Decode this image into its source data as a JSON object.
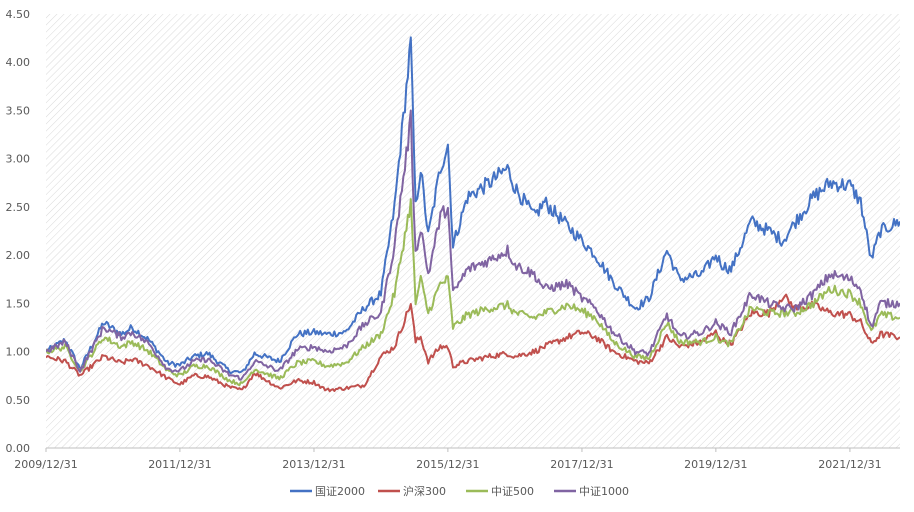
{
  "chart_data": {
    "type": "line",
    "title": "",
    "xlabel": "",
    "ylabel": "",
    "xlim": [
      "2009-12-31",
      "2022-09-30"
    ],
    "ylim": [
      0,
      4.5
    ],
    "y_ticks": [
      "0.00",
      "0.50",
      "1.00",
      "1.50",
      "2.00",
      "2.50",
      "3.00",
      "3.50",
      "4.00",
      "4.50"
    ],
    "x_ticks": [
      "2009/12/31",
      "2011/12/31",
      "2013/12/31",
      "2015/12/31",
      "2017/12/31",
      "2019/12/31",
      "2021/12/31"
    ],
    "grid": "hatched plot area, no gridlines",
    "legend_position": "bottom",
    "series": [
      {
        "name": "国证2000",
        "color": "#4472c4",
        "points": [
          [
            "2009-12-31",
            1.0
          ],
          [
            "2010-04-15",
            1.12
          ],
          [
            "2010-07-05",
            0.82
          ],
          [
            "2010-11-10",
            1.3
          ],
          [
            "2011-02-15",
            1.18
          ],
          [
            "2011-04-15",
            1.25
          ],
          [
            "2011-07-15",
            1.12
          ],
          [
            "2011-10-25",
            0.88
          ],
          [
            "2011-12-31",
            0.86
          ],
          [
            "2012-03-15",
            0.95
          ],
          [
            "2012-06-01",
            0.98
          ],
          [
            "2012-09-25",
            0.8
          ],
          [
            "2012-12-05",
            0.78
          ],
          [
            "2013-02-10",
            0.98
          ],
          [
            "2013-06-25",
            0.9
          ],
          [
            "2013-09-30",
            1.18
          ],
          [
            "2013-12-31",
            1.2
          ],
          [
            "2014-03-10",
            1.18
          ],
          [
            "2014-06-20",
            1.2
          ],
          [
            "2014-09-30",
            1.45
          ],
          [
            "2014-12-31",
            1.6
          ],
          [
            "2015-03-15",
            2.5
          ],
          [
            "2015-06-12",
            4.2
          ],
          [
            "2015-07-08",
            2.5
          ],
          [
            "2015-08-05",
            2.9
          ],
          [
            "2015-09-15",
            2.2
          ],
          [
            "2015-11-20",
            2.9
          ],
          [
            "2015-12-31",
            3.15
          ],
          [
            "2016-01-28",
            2.1
          ],
          [
            "2016-04-15",
            2.6
          ],
          [
            "2016-08-15",
            2.75
          ],
          [
            "2016-11-20",
            2.9
          ],
          [
            "2016-12-31",
            2.7
          ],
          [
            "2017-04-15",
            2.4
          ],
          [
            "2017-06-10",
            2.55
          ],
          [
            "2017-10-15",
            2.3
          ],
          [
            "2017-12-31",
            2.15
          ],
          [
            "2018-03-15",
            2.0
          ],
          [
            "2018-06-20",
            1.72
          ],
          [
            "2018-10-18",
            1.45
          ],
          [
            "2018-12-31",
            1.55
          ],
          [
            "2019-04-08",
            2.05
          ],
          [
            "2019-06-15",
            1.75
          ],
          [
            "2019-10-15",
            1.8
          ],
          [
            "2019-12-31",
            2.0
          ],
          [
            "2020-02-03",
            1.9
          ],
          [
            "2020-03-23",
            1.85
          ],
          [
            "2020-07-10",
            2.35
          ],
          [
            "2020-10-15",
            2.25
          ],
          [
            "2020-12-31",
            2.15
          ],
          [
            "2021-03-10",
            2.35
          ],
          [
            "2021-06-15",
            2.6
          ],
          [
            "2021-09-15",
            2.75
          ],
          [
            "2021-12-31",
            2.72
          ],
          [
            "2022-02-28",
            2.55
          ],
          [
            "2022-04-26",
            1.95
          ],
          [
            "2022-06-15",
            2.25
          ],
          [
            "2022-09-30",
            2.35
          ]
        ]
      },
      {
        "name": "沪深300",
        "color": "#c0504d",
        "points": [
          [
            "2009-12-31",
            0.95
          ],
          [
            "2010-04-15",
            0.9
          ],
          [
            "2010-07-05",
            0.75
          ],
          [
            "2010-11-10",
            0.95
          ],
          [
            "2011-02-15",
            0.88
          ],
          [
            "2011-04-15",
            0.92
          ],
          [
            "2011-07-15",
            0.85
          ],
          [
            "2011-10-25",
            0.72
          ],
          [
            "2011-12-31",
            0.66
          ],
          [
            "2012-03-15",
            0.75
          ],
          [
            "2012-06-01",
            0.74
          ],
          [
            "2012-09-25",
            0.63
          ],
          [
            "2012-12-05",
            0.6
          ],
          [
            "2013-02-10",
            0.78
          ],
          [
            "2013-06-25",
            0.62
          ],
          [
            "2013-09-30",
            0.7
          ],
          [
            "2013-12-31",
            0.68
          ],
          [
            "2014-03-10",
            0.6
          ],
          [
            "2014-06-20",
            0.62
          ],
          [
            "2014-09-30",
            0.65
          ],
          [
            "2014-12-31",
            0.95
          ],
          [
            "2015-03-15",
            1.05
          ],
          [
            "2015-06-12",
            1.5
          ],
          [
            "2015-07-08",
            1.1
          ],
          [
            "2015-08-05",
            1.15
          ],
          [
            "2015-09-15",
            0.9
          ],
          [
            "2015-11-20",
            1.05
          ],
          [
            "2015-12-31",
            1.05
          ],
          [
            "2016-01-28",
            0.85
          ],
          [
            "2016-04-15",
            0.9
          ],
          [
            "2016-08-15",
            0.95
          ],
          [
            "2016-11-20",
            0.98
          ],
          [
            "2016-12-31",
            0.95
          ],
          [
            "2017-04-15",
            1.0
          ],
          [
            "2017-06-10",
            1.05
          ],
          [
            "2017-10-15",
            1.15
          ],
          [
            "2017-12-31",
            1.2
          ],
          [
            "2018-03-15",
            1.15
          ],
          [
            "2018-06-20",
            1.0
          ],
          [
            "2018-10-18",
            0.9
          ],
          [
            "2018-12-31",
            0.88
          ],
          [
            "2019-04-08",
            1.15
          ],
          [
            "2019-06-15",
            1.05
          ],
          [
            "2019-10-15",
            1.1
          ],
          [
            "2019-12-31",
            1.2
          ],
          [
            "2020-02-03",
            1.12
          ],
          [
            "2020-03-23",
            1.08
          ],
          [
            "2020-07-10",
            1.4
          ],
          [
            "2020-10-15",
            1.4
          ],
          [
            "2020-12-31",
            1.58
          ],
          [
            "2021-03-10",
            1.45
          ],
          [
            "2021-06-15",
            1.48
          ],
          [
            "2021-09-15",
            1.4
          ],
          [
            "2021-12-31",
            1.38
          ],
          [
            "2022-02-28",
            1.3
          ],
          [
            "2022-04-26",
            1.08
          ],
          [
            "2022-06-15",
            1.18
          ],
          [
            "2022-09-30",
            1.15
          ]
        ]
      },
      {
        "name": "中证500",
        "color": "#9bbb59",
        "points": [
          [
            "2009-12-31",
            1.0
          ],
          [
            "2010-04-15",
            1.05
          ],
          [
            "2010-07-05",
            0.8
          ],
          [
            "2010-11-10",
            1.15
          ],
          [
            "2011-02-15",
            1.05
          ],
          [
            "2011-04-15",
            1.1
          ],
          [
            "2011-07-15",
            1.0
          ],
          [
            "2011-10-25",
            0.8
          ],
          [
            "2011-12-31",
            0.75
          ],
          [
            "2012-03-15",
            0.85
          ],
          [
            "2012-06-01",
            0.85
          ],
          [
            "2012-09-25",
            0.7
          ],
          [
            "2012-12-05",
            0.66
          ],
          [
            "2013-02-10",
            0.82
          ],
          [
            "2013-06-25",
            0.72
          ],
          [
            "2013-09-30",
            0.88
          ],
          [
            "2013-12-31",
            0.9
          ],
          [
            "2014-03-10",
            0.85
          ],
          [
            "2014-06-20",
            0.88
          ],
          [
            "2014-09-30",
            1.05
          ],
          [
            "2014-12-31",
            1.18
          ],
          [
            "2015-03-15",
            1.6
          ],
          [
            "2015-06-12",
            2.55
          ],
          [
            "2015-07-08",
            1.5
          ],
          [
            "2015-08-05",
            1.75
          ],
          [
            "2015-09-15",
            1.4
          ],
          [
            "2015-11-20",
            1.7
          ],
          [
            "2015-12-31",
            1.75
          ],
          [
            "2016-01-28",
            1.25
          ],
          [
            "2016-04-15",
            1.38
          ],
          [
            "2016-08-15",
            1.45
          ],
          [
            "2016-11-20",
            1.48
          ],
          [
            "2016-12-31",
            1.4
          ],
          [
            "2017-04-15",
            1.35
          ],
          [
            "2017-06-10",
            1.4
          ],
          [
            "2017-10-15",
            1.48
          ],
          [
            "2017-12-31",
            1.42
          ],
          [
            "2018-03-15",
            1.35
          ],
          [
            "2018-06-20",
            1.1
          ],
          [
            "2018-10-18",
            0.95
          ],
          [
            "2018-12-31",
            0.93
          ],
          [
            "2019-04-08",
            1.3
          ],
          [
            "2019-06-15",
            1.1
          ],
          [
            "2019-10-15",
            1.1
          ],
          [
            "2019-12-31",
            1.15
          ],
          [
            "2020-02-03",
            1.1
          ],
          [
            "2020-03-23",
            1.08
          ],
          [
            "2020-07-10",
            1.45
          ],
          [
            "2020-10-15",
            1.4
          ],
          [
            "2020-12-31",
            1.4
          ],
          [
            "2021-03-10",
            1.4
          ],
          [
            "2021-06-15",
            1.5
          ],
          [
            "2021-09-15",
            1.65
          ],
          [
            "2021-12-31",
            1.6
          ],
          [
            "2022-02-28",
            1.5
          ],
          [
            "2022-04-26",
            1.2
          ],
          [
            "2022-06-15",
            1.38
          ],
          [
            "2022-09-30",
            1.35
          ]
        ]
      },
      {
        "name": "中证1000",
        "color": "#8064a2",
        "points": [
          [
            "2009-12-31",
            1.0
          ],
          [
            "2010-04-15",
            1.1
          ],
          [
            "2010-07-05",
            0.8
          ],
          [
            "2010-11-10",
            1.25
          ],
          [
            "2011-02-15",
            1.15
          ],
          [
            "2011-04-15",
            1.2
          ],
          [
            "2011-07-15",
            1.08
          ],
          [
            "2011-10-25",
            0.82
          ],
          [
            "2011-12-31",
            0.8
          ],
          [
            "2012-03-15",
            0.9
          ],
          [
            "2012-06-01",
            0.92
          ],
          [
            "2012-09-25",
            0.76
          ],
          [
            "2012-12-05",
            0.72
          ],
          [
            "2013-02-10",
            0.9
          ],
          [
            "2013-06-25",
            0.8
          ],
          [
            "2013-09-30",
            1.02
          ],
          [
            "2013-12-31",
            1.05
          ],
          [
            "2014-03-10",
            1.0
          ],
          [
            "2014-06-20",
            1.05
          ],
          [
            "2014-09-30",
            1.28
          ],
          [
            "2014-12-31",
            1.4
          ],
          [
            "2015-03-15",
            2.1
          ],
          [
            "2015-06-12",
            3.4
          ],
          [
            "2015-07-08",
            2.0
          ],
          [
            "2015-08-05",
            2.3
          ],
          [
            "2015-09-15",
            1.8
          ],
          [
            "2015-11-20",
            2.4
          ],
          [
            "2015-12-31",
            2.5
          ],
          [
            "2016-01-28",
            1.6
          ],
          [
            "2016-04-15",
            1.85
          ],
          [
            "2016-08-15",
            1.95
          ],
          [
            "2016-11-20",
            2.05
          ],
          [
            "2016-12-31",
            1.9
          ],
          [
            "2017-04-15",
            1.8
          ],
          [
            "2017-06-10",
            1.65
          ],
          [
            "2017-10-15",
            1.7
          ],
          [
            "2017-12-31",
            1.55
          ],
          [
            "2018-03-15",
            1.45
          ],
          [
            "2018-06-20",
            1.2
          ],
          [
            "2018-10-18",
            1.0
          ],
          [
            "2018-12-31",
            0.98
          ],
          [
            "2019-04-08",
            1.38
          ],
          [
            "2019-06-15",
            1.15
          ],
          [
            "2019-10-15",
            1.2
          ],
          [
            "2019-12-31",
            1.3
          ],
          [
            "2020-02-03",
            1.25
          ],
          [
            "2020-03-23",
            1.2
          ],
          [
            "2020-07-10",
            1.6
          ],
          [
            "2020-10-15",
            1.5
          ],
          [
            "2020-12-31",
            1.45
          ],
          [
            "2021-03-10",
            1.45
          ],
          [
            "2021-06-15",
            1.6
          ],
          [
            "2021-09-15",
            1.8
          ],
          [
            "2021-12-31",
            1.75
          ],
          [
            "2022-02-28",
            1.65
          ],
          [
            "2022-04-26",
            1.25
          ],
          [
            "2022-06-15",
            1.5
          ],
          [
            "2022-09-30",
            1.5
          ]
        ]
      }
    ]
  }
}
